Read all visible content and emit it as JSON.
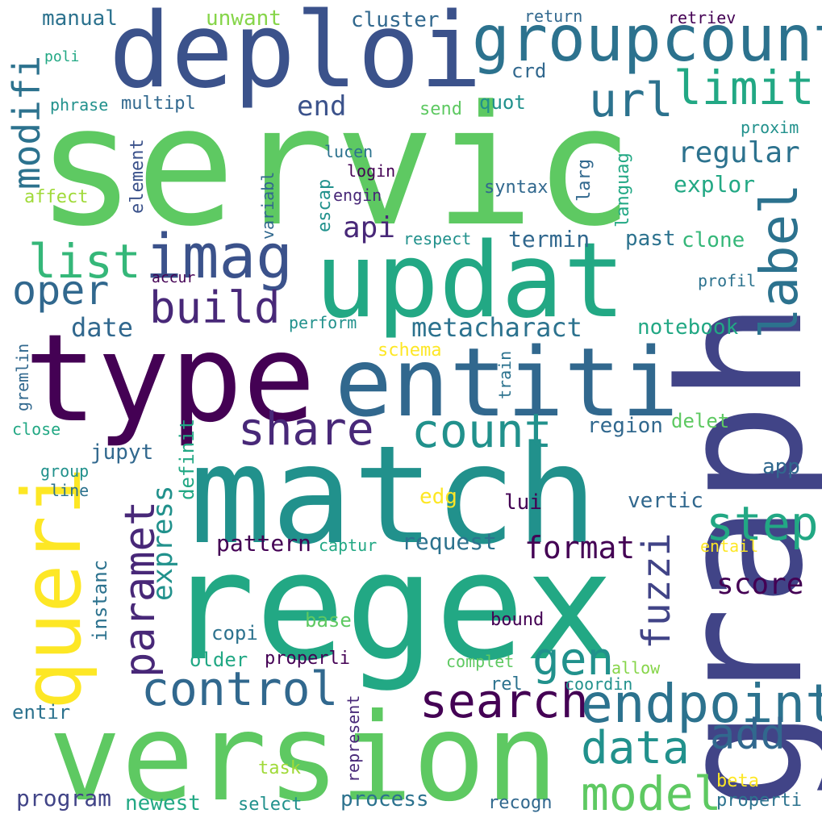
{
  "colors": {
    "background": "#ffffff",
    "palette": [
      "#440154",
      "#3b528b",
      "#21918c",
      "#5ec962",
      "#fde725"
    ]
  },
  "words": [
    "servic",
    "deploi",
    "groupcount",
    "updat",
    "graph",
    "type",
    "entiti",
    "match",
    "regex",
    "version",
    "queri",
    "imag",
    "url",
    "limit",
    "label",
    "list",
    "oper",
    "build",
    "share",
    "count",
    "control",
    "search",
    "endpoint",
    "model",
    "data",
    "add",
    "step",
    "paramet",
    "fuzzi",
    "gen",
    "format",
    "score",
    "modifi",
    "metacharact",
    "api",
    "regular",
    "explor",
    "date",
    "termin",
    "past",
    "clone",
    "notebook",
    "express",
    "definit",
    "pattern",
    "request",
    "region",
    "delet",
    "app",
    "vertic",
    "lui",
    "edg",
    "instanc",
    "jupyt",
    "copi",
    "base",
    "bound",
    "older",
    "properli",
    "complet",
    "allow",
    "coordin",
    "rel",
    "entir",
    "program",
    "newest",
    "select",
    "process",
    "recogn",
    "properti",
    "beta",
    "task",
    "represent",
    "gremlin",
    "close",
    "group",
    "line",
    "captur",
    "entail",
    "schema",
    "perform",
    "respect",
    "profil",
    "accur",
    "variabl",
    "element",
    "escap",
    "lucen",
    "login",
    "engin",
    "syntax",
    "larg",
    "languag",
    "proxim",
    "affect",
    "phrase",
    "multipl",
    "poli",
    "manual",
    "unwant",
    "cluster",
    "return",
    "retriev",
    "crd",
    "end",
    "send",
    "quot",
    "train"
  ]
}
